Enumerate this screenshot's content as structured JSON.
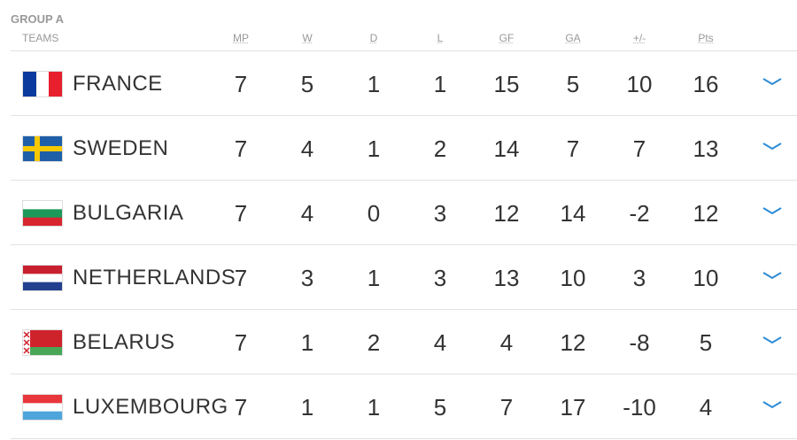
{
  "group": {
    "title": "GROUP A",
    "columns": [
      "TEAMS",
      "MP",
      "W",
      "D",
      "L",
      "GF",
      "GA",
      "+/-",
      "Pts"
    ],
    "rows": [
      [
        "FRANCE",
        7,
        5,
        1,
        1,
        15,
        5,
        10,
        16
      ],
      [
        "SWEDEN",
        7,
        4,
        1,
        2,
        14,
        7,
        7,
        13
      ],
      [
        "BULGARIA",
        7,
        4,
        0,
        3,
        12,
        14,
        -2,
        12
      ],
      [
        "NETHERLANDS",
        7,
        3,
        1,
        3,
        13,
        10,
        3,
        10
      ],
      [
        "BELARUS",
        7,
        1,
        2,
        4,
        4,
        12,
        -8,
        5
      ],
      [
        "LUXEMBOURG",
        7,
        1,
        1,
        5,
        7,
        17,
        -10,
        4
      ]
    ]
  }
}
